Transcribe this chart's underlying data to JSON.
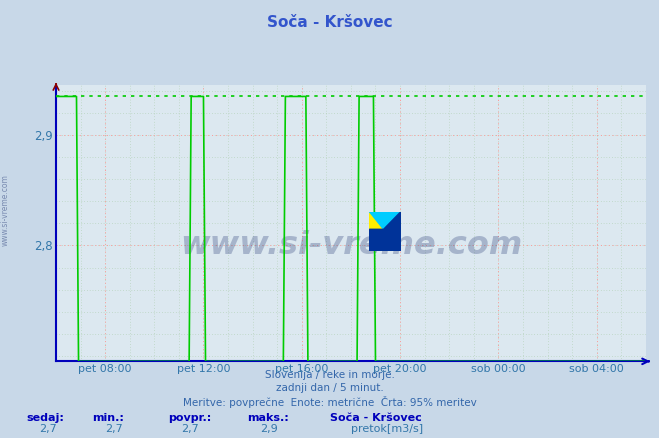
{
  "title": "Soča - Kršovec",
  "title_color": "#3355cc",
  "bg_color": "#c8d8e8",
  "plot_bg_color": "#dce8f0",
  "grid_color_major": "#ff9999",
  "grid_color_minor": "#aaccaa",
  "yticks": [
    2.8,
    2.9
  ],
  "ylim": [
    2.695,
    2.945
  ],
  "xlim": [
    0,
    288
  ],
  "xtick_positions": [
    24,
    72,
    120,
    168,
    216,
    264
  ],
  "xtick_labels": [
    "pet 08:00",
    "pet 12:00",
    "pet 16:00",
    "pet 20:00",
    "sob 00:00",
    "sob 04:00"
  ],
  "line_color": "#00cc00",
  "ref_line_color": "#00cc00",
  "ref_line_y": 2.935,
  "axis_color": "#0000bb",
  "tick_label_color": "#3377aa",
  "subtitle_lines": [
    "Slovenija / reke in morje.",
    "zadnji dan / 5 minut.",
    "Meritve: povprečne  Enote: metrične  Črta: 95% meritev"
  ],
  "subtitle_color": "#3366aa",
  "footer_labels": [
    "sedaj:",
    "min.:",
    "povpr.:",
    "maks.:"
  ],
  "footer_values": [
    "2,7",
    "2,7",
    "2,7",
    "2,9"
  ],
  "footer_color": "#0000bb",
  "footer_value_color": "#3377aa",
  "legend_station": "Soča - Kršovec",
  "legend_unit": "pretok[m3/s]",
  "legend_color": "#00cc00",
  "watermark_text": "www.si-vreme.com",
  "watermark_color": "#1a2e6e",
  "sidewatermark": "www.si-vreme.com",
  "bottom_val": 2.695,
  "top_val": 2.935
}
